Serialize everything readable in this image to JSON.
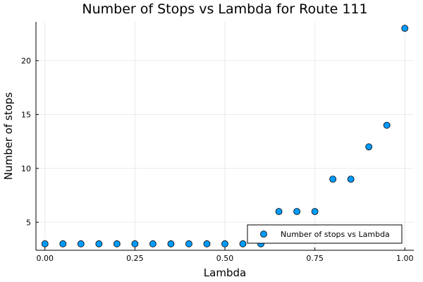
{
  "chart_data": {
    "type": "scatter",
    "title": "Number of Stops vs Lambda for Route 111",
    "xlabel": "Lambda",
    "ylabel": "Number of stops",
    "xlim": [
      -0.025,
      1.025
    ],
    "ylim": [
      2.4,
      23.6
    ],
    "xticks": [
      0.0,
      0.25,
      0.5,
      0.75,
      1.0
    ],
    "xtick_labels": [
      "0.00",
      "0.25",
      "0.50",
      "0.75",
      "1.00"
    ],
    "yticks": [
      5,
      10,
      15,
      20
    ],
    "ytick_labels": [
      "5",
      "10",
      "15",
      "20"
    ],
    "grid": true,
    "legend_position": "bottom-right",
    "series": [
      {
        "name": "Number of stops vs Lambda",
        "color": "#009AFA",
        "x": [
          0.0,
          0.05,
          0.1,
          0.15,
          0.2,
          0.25,
          0.3,
          0.35,
          0.4,
          0.45,
          0.5,
          0.55,
          0.6,
          0.65,
          0.7,
          0.75,
          0.8,
          0.85,
          0.9,
          0.95,
          1.0
        ],
        "y": [
          3,
          3,
          3,
          3,
          3,
          3,
          3,
          3,
          3,
          3,
          3,
          3,
          3,
          6,
          6,
          6,
          9,
          9,
          12,
          14,
          23
        ]
      }
    ]
  }
}
